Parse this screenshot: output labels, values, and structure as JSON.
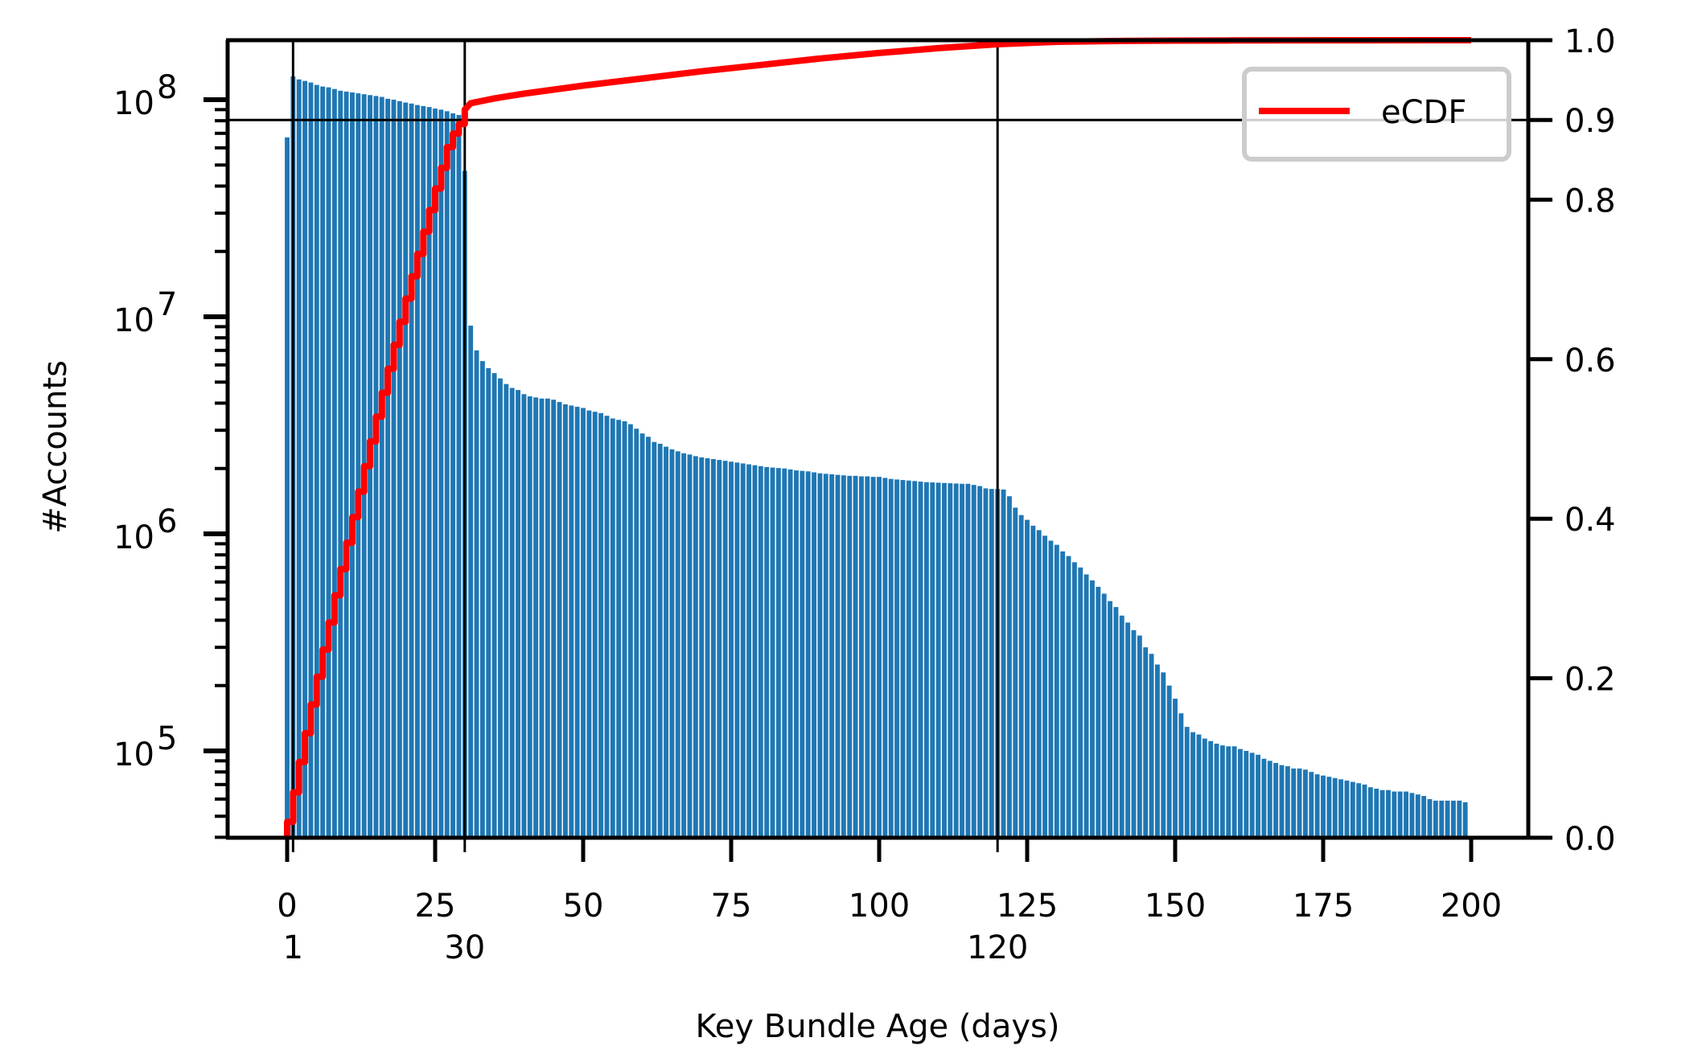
{
  "chart_data": {
    "type": "bar",
    "title": "",
    "xlabel": "Key Bundle Age (days)",
    "ylabel": "#Accounts",
    "ylabel_right": "",
    "yscale": "log",
    "xlim": [
      -10,
      210
    ],
    "ylim": [
      40000,
      188000000
    ],
    "ylim_right": [
      0.0,
      1.0
    ],
    "grid": false,
    "legend": {
      "position": "upper right",
      "entries": [
        "eCDF"
      ]
    },
    "x_ticks": [
      "0",
      "25",
      "50",
      "75",
      "100",
      "125",
      "150",
      "175",
      "200"
    ],
    "x_ticks_secondary": [
      "1",
      "30",
      "120"
    ],
    "y_ticks_left": [
      "10^5",
      "10^6",
      "10^7",
      "10^8"
    ],
    "y_ticks_right": [
      "0.0",
      "0.2",
      "0.4",
      "0.6",
      "0.8",
      "0.9",
      "1.0"
    ],
    "reference_lines": {
      "vertical_x": [
        1,
        30,
        120
      ],
      "horizontal_cdf": 0.9
    },
    "colors": {
      "bars": "#1f77b4",
      "ecdf": "#ff0000",
      "reference_lines": "#000000"
    },
    "series": [
      {
        "name": "#Accounts",
        "type": "bar",
        "axis": "left",
        "x_start": 0,
        "x_step": 1,
        "values": [
          67000000,
          128000000,
          124000000,
          122000000,
          120000000,
          117000000,
          115000000,
          114000000,
          112000000,
          110000000,
          109000000,
          108000000,
          107000000,
          106000000,
          105000000,
          104000000,
          103000000,
          101000000,
          100000000,
          98500000,
          97000000,
          96000000,
          94500000,
          93500000,
          92500000,
          91000000,
          90000000,
          88500000,
          86500000,
          85000000,
          47000000,
          9100000,
          7000000,
          6250000,
          5800000,
          5500000,
          5200000,
          4900000,
          4700000,
          4600000,
          4400000,
          4300000,
          4250000,
          4200000,
          4200000,
          4150000,
          4050000,
          3950000,
          3900000,
          3850000,
          3800000,
          3700000,
          3650000,
          3600000,
          3500000,
          3400000,
          3350000,
          3300000,
          3200000,
          3050000,
          2900000,
          2800000,
          2650000,
          2600000,
          2520000,
          2450000,
          2400000,
          2350000,
          2320000,
          2280000,
          2250000,
          2230000,
          2210000,
          2190000,
          2170000,
          2150000,
          2130000,
          2110000,
          2090000,
          2070000,
          2050000,
          2030000,
          2020000,
          2010000,
          2000000,
          1980000,
          1960000,
          1950000,
          1940000,
          1920000,
          1900000,
          1890000,
          1880000,
          1870000,
          1860000,
          1850000,
          1850000,
          1840000,
          1840000,
          1830000,
          1830000,
          1810000,
          1790000,
          1780000,
          1770000,
          1760000,
          1750000,
          1740000,
          1730000,
          1725000,
          1720000,
          1715000,
          1710000,
          1705000,
          1700000,
          1700000,
          1680000,
          1660000,
          1620000,
          1610000,
          1610000,
          1600000,
          1490000,
          1320000,
          1220000,
          1160000,
          1090000,
          1040000,
          980000,
          930000,
          890000,
          830000,
          790000,
          740000,
          700000,
          650000,
          610000,
          570000,
          530000,
          490000,
          460000,
          420000,
          390000,
          360000,
          340000,
          300000,
          280000,
          250000,
          230000,
          200000,
          174000,
          149000,
          129000,
          122000,
          119000,
          114000,
          111000,
          108000,
          106000,
          105000,
          105000,
          102000,
          100000,
          98000,
          96000,
          92000,
          90000,
          88000,
          86000,
          85000,
          83000,
          83000,
          82000,
          80000,
          78000,
          77000,
          76000,
          75000,
          74000,
          73000,
          72000,
          71000,
          70000,
          68000,
          67000,
          66000,
          66000,
          65000,
          65000,
          65000,
          64000,
          63000,
          62000,
          60000,
          59000,
          59000,
          59000,
          59000,
          59000,
          58000
        ]
      },
      {
        "name": "eCDF",
        "type": "step-line",
        "axis": "right",
        "x": [
          0,
          0,
          1,
          2,
          3,
          4,
          5,
          6,
          7,
          8,
          9,
          10,
          11,
          12,
          13,
          14,
          15,
          16,
          17,
          18,
          19,
          20,
          21,
          22,
          23,
          24,
          25,
          26,
          27,
          28,
          29,
          30,
          31,
          35,
          40,
          50,
          60,
          70,
          80,
          90,
          100,
          110,
          120,
          130,
          140,
          150,
          160,
          180,
          200
        ],
        "values": [
          0.0,
          0.02,
          0.057,
          0.095,
          0.131,
          0.167,
          0.202,
          0.236,
          0.27,
          0.304,
          0.337,
          0.37,
          0.402,
          0.434,
          0.466,
          0.497,
          0.528,
          0.558,
          0.588,
          0.618,
          0.647,
          0.676,
          0.704,
          0.732,
          0.76,
          0.787,
          0.814,
          0.84,
          0.866,
          0.883,
          0.895,
          0.913,
          0.921,
          0.927,
          0.933,
          0.943,
          0.952,
          0.961,
          0.969,
          0.977,
          0.984,
          0.99,
          0.995,
          0.998,
          0.999,
          0.9995,
          0.9997,
          0.9999,
          1.0
        ]
      }
    ]
  }
}
